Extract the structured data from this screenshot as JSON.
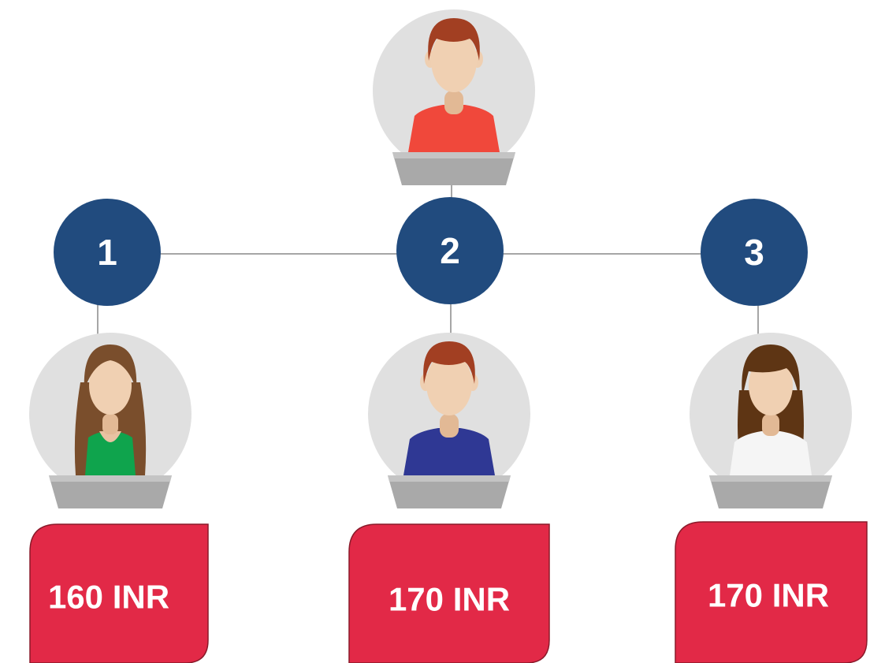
{
  "steps": [
    {
      "number": "1",
      "amount": "160 INR"
    },
    {
      "number": "2",
      "amount": "170 INR"
    },
    {
      "number": "3",
      "amount": "170 INR"
    }
  ]
}
